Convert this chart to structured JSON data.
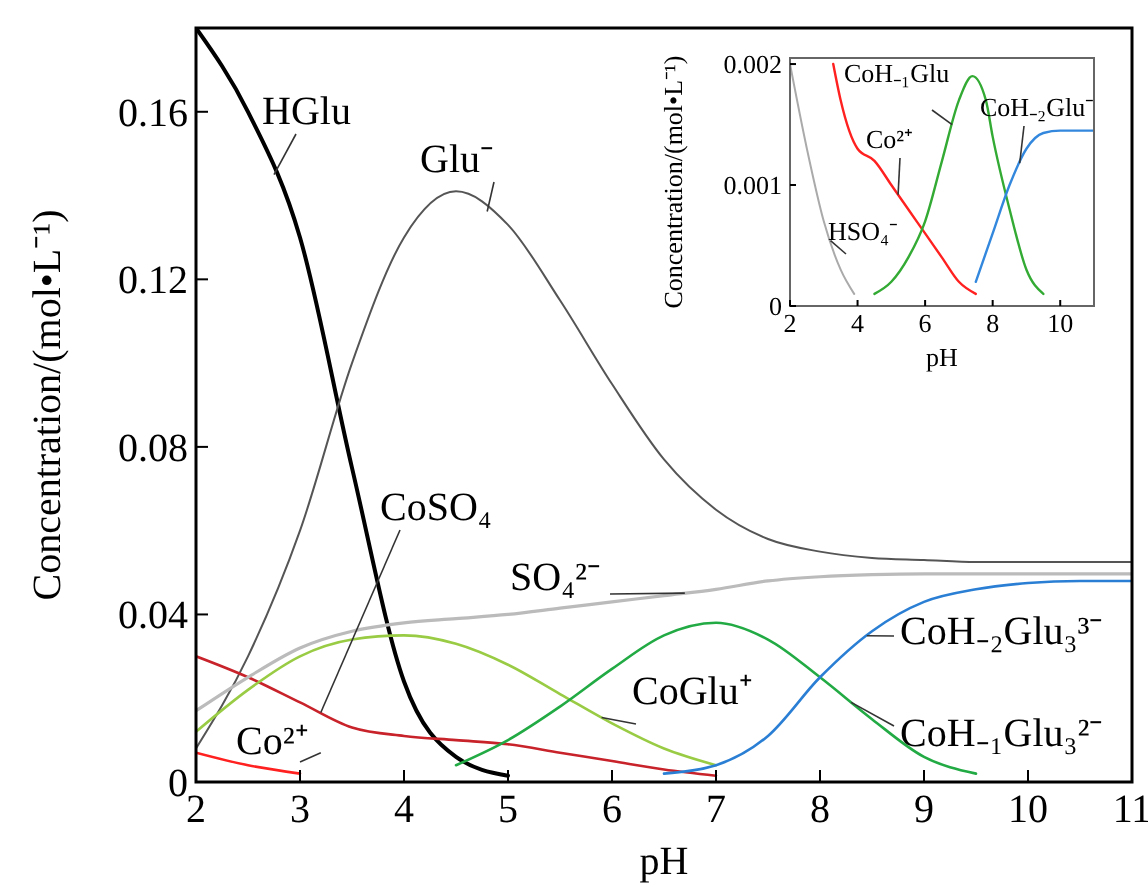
{
  "chart_data": [
    {
      "type": "line",
      "xlabel": "pH",
      "ylabel": "Concentration/(mol•L⁻¹)",
      "xlim": [
        2,
        11
      ],
      "xticks": [
        2,
        3,
        4,
        5,
        6,
        7,
        8,
        9,
        10,
        11
      ],
      "ylim": [
        0,
        0.18
      ],
      "yticks": [
        0,
        0.04,
        0.08,
        0.12,
        0.16
      ],
      "x": [
        2,
        2.5,
        3,
        3.5,
        4,
        4.5,
        5,
        5.5,
        6,
        6.5,
        7,
        7.5,
        8,
        8.5,
        9,
        9.5,
        10,
        10.5,
        11
      ],
      "series": [
        {
          "name": "HGlu",
          "color": "#000000",
          "values": [
            0.18,
            0.16,
            0.13,
            0.075,
            0.024,
            0.006,
            0.0015,
            null,
            null,
            null,
            null,
            null,
            null,
            null,
            null,
            null,
            null,
            null,
            null
          ]
        },
        {
          "name": "Glu⁻",
          "color": "#555555",
          "values": [
            0.008,
            0.03,
            0.06,
            0.1,
            0.13,
            0.141,
            0.133,
            0.115,
            0.095,
            0.077,
            0.065,
            0.058,
            0.055,
            0.0535,
            0.053,
            0.0525,
            0.0525,
            0.0525,
            0.0525
          ]
        },
        {
          "name": "CoSO₄",
          "color": "#c8222a",
          "values": [
            0.03,
            0.025,
            0.019,
            0.013,
            0.011,
            0.01,
            0.009,
            0.007,
            0.005,
            0.003,
            0.0015,
            null,
            null,
            null,
            null,
            null,
            null,
            null,
            null
          ]
        },
        {
          "name": "SO₄²⁻",
          "color": "#bbbbbb",
          "values": [
            0.017,
            0.025,
            0.032,
            0.036,
            0.038,
            0.039,
            0.04,
            0.0415,
            0.043,
            0.0445,
            0.046,
            0.048,
            0.049,
            0.0495,
            0.0497,
            0.0497,
            0.0497,
            0.0497,
            0.0497
          ]
        },
        {
          "name": "Co²⁺",
          "color": "#ff2020",
          "values": [
            0.007,
            0.004,
            0.002,
            null,
            null,
            null,
            null,
            null,
            null,
            null,
            null,
            null,
            null,
            null,
            null,
            null,
            null,
            null,
            null
          ]
        },
        {
          "name": "CoGlu⁺",
          "color": "#99cc44",
          "values": [
            0.012,
            0.022,
            0.03,
            0.034,
            0.035,
            0.033,
            0.028,
            0.021,
            0.014,
            0.008,
            0.004,
            null,
            null,
            null,
            null,
            null,
            null,
            null,
            null
          ]
        },
        {
          "name": "CoH₋₁Glu₃²⁻",
          "color": "#22aa44",
          "values": [
            null,
            null,
            null,
            null,
            null,
            0.004,
            0.01,
            0.018,
            0.027,
            0.035,
            0.038,
            0.034,
            0.025,
            0.015,
            0.006,
            0.002,
            null,
            null,
            null
          ]
        },
        {
          "name": "CoH₋₂Glu₃³⁻",
          "color": "#2a7fd4",
          "values": [
            null,
            null,
            null,
            null,
            null,
            null,
            null,
            null,
            null,
            0.002,
            0.004,
            0.011,
            0.025,
            0.036,
            0.043,
            0.046,
            0.0475,
            0.048,
            0.048
          ]
        }
      ]
    },
    {
      "type": "line",
      "xlabel": "pH",
      "ylabel": "Concentration/(mol•L⁻¹)",
      "xlim": [
        2,
        11
      ],
      "xticks": [
        2,
        4,
        6,
        8,
        10
      ],
      "ylim": [
        0,
        0.00205
      ],
      "yticks": [
        0,
        0.001,
        0.002
      ],
      "series": [
        {
          "name": "HSO₄⁻",
          "color": "#aaaaaa",
          "x": [
            2,
            2.5,
            3,
            3.5,
            3.9
          ],
          "values": [
            0.002,
            0.0013,
            0.0007,
            0.0003,
            0.0001
          ]
        },
        {
          "name": "Co²⁺",
          "color": "#ff2020",
          "x": [
            3.28,
            3.5,
            4,
            4.5,
            5,
            5.5,
            6,
            6.5,
            7,
            7.5
          ],
          "values": [
            0.002,
            0.0017,
            0.0013,
            0.0012,
            0.001,
            0.0008,
            0.0006,
            0.0004,
            0.0002,
            0.0001
          ]
        },
        {
          "name": "CoH₋₁Glu",
          "color": "#33aa33",
          "x": [
            4.5,
            5,
            5.5,
            6,
            6.5,
            7,
            7.4,
            7.8,
            8,
            8.5,
            9,
            9.5
          ],
          "values": [
            0.0001,
            0.0002,
            0.0004,
            0.0007,
            0.0012,
            0.0017,
            0.0019,
            0.0017,
            0.0014,
            0.0008,
            0.0003,
            0.0001
          ]
        },
        {
          "name": "CoH₋₂Glu⁻",
          "color": "#3388dd",
          "x": [
            7.5,
            8,
            8.5,
            9,
            9.5,
            10,
            11
          ],
          "values": [
            0.0002,
            0.0006,
            0.001,
            0.0013,
            0.00143,
            0.00145,
            0.00145
          ]
        }
      ]
    }
  ]
}
